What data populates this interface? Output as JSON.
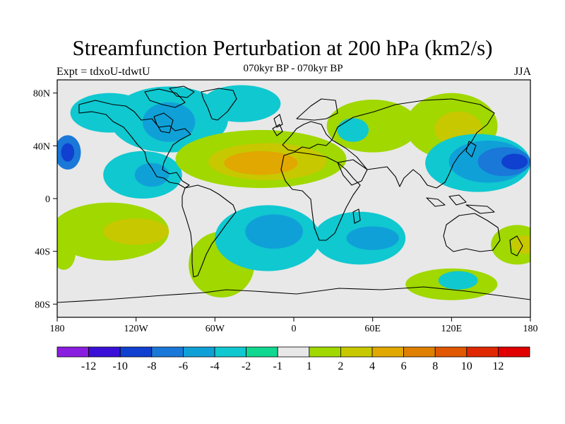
{
  "title": "Streamfunction Perturbation at 200 hPa (km2/s)",
  "subtitle": "070kyr BP - 070kyr BP",
  "experiment": "Expt = tdxoU-tdwtU",
  "season": "JJA",
  "map": {
    "lat_range": [
      -90,
      90
    ],
    "lon_range": [
      -180,
      180
    ],
    "lat_ticks": [
      {
        "value": 80,
        "label": "80N"
      },
      {
        "value": 40,
        "label": "40N"
      },
      {
        "value": 0,
        "label": "0"
      },
      {
        "value": -40,
        "label": "40S"
      },
      {
        "value": -80,
        "label": "80S"
      }
    ],
    "lon_ticks": [
      {
        "value": -180,
        "label": "180"
      },
      {
        "value": -120,
        "label": "120W"
      },
      {
        "value": -60,
        "label": "60W"
      },
      {
        "value": 0,
        "label": "0"
      },
      {
        "value": 60,
        "label": "60E"
      },
      {
        "value": 120,
        "label": "120E"
      },
      {
        "value": 180,
        "label": "180"
      }
    ],
    "background_color": "#e8e8e8"
  },
  "colorbar": {
    "colors": [
      "#8a1ee0",
      "#3a10d8",
      "#1040d0",
      "#1a78d8",
      "#10a0d8",
      "#10c8d0",
      "#10d890",
      "#e8e8e8",
      "#a0d800",
      "#c8c800",
      "#e0a800",
      "#e08000",
      "#e05800",
      "#e02800",
      "#e00000"
    ],
    "labels": [
      "-12",
      "-10",
      "-8",
      "-6",
      "-4",
      "-2",
      "-1",
      "1",
      "2",
      "4",
      "6",
      "8",
      "10",
      "12"
    ]
  },
  "field_blobs": [
    {
      "lon": -172,
      "lat": 35,
      "rx": 10,
      "ry": 13,
      "level": -6
    },
    {
      "lon": -172,
      "lat": 35,
      "rx": 5,
      "ry": 7,
      "level": -8
    },
    {
      "lon": -175,
      "lat": -41,
      "rx": 9,
      "ry": 13,
      "level": 2
    },
    {
      "lon": -140,
      "lat": 65,
      "rx": 30,
      "ry": 15,
      "level": -2
    },
    {
      "lon": -95,
      "lat": 60,
      "rx": 45,
      "ry": 25,
      "level": -2
    },
    {
      "lon": -95,
      "lat": 58,
      "rx": 20,
      "ry": 15,
      "level": -4
    },
    {
      "lon": -115,
      "lat": 18,
      "rx": 30,
      "ry": 18,
      "level": -2
    },
    {
      "lon": -108,
      "lat": 18,
      "rx": 13,
      "ry": 9,
      "level": -4
    },
    {
      "lon": -40,
      "lat": 72,
      "rx": 30,
      "ry": 14,
      "level": -2
    },
    {
      "lon": -25,
      "lat": 30,
      "rx": 65,
      "ry": 22,
      "level": 2
    },
    {
      "lon": -20,
      "lat": 28,
      "rx": 45,
      "ry": 14,
      "level": 4
    },
    {
      "lon": -25,
      "lat": 27,
      "rx": 28,
      "ry": 9,
      "level": 6
    },
    {
      "lon": 60,
      "lat": 55,
      "rx": 35,
      "ry": 20,
      "level": 2
    },
    {
      "lon": 120,
      "lat": 55,
      "rx": 35,
      "ry": 25,
      "level": 2
    },
    {
      "lon": 125,
      "lat": 53,
      "rx": 18,
      "ry": 13,
      "level": 4
    },
    {
      "lon": 45,
      "lat": 52,
      "rx": 12,
      "ry": 9,
      "level": -2
    },
    {
      "lon": 140,
      "lat": 27,
      "rx": 40,
      "ry": 22,
      "level": -2
    },
    {
      "lon": 148,
      "lat": 28,
      "rx": 30,
      "ry": 16,
      "level": -4
    },
    {
      "lon": 160,
      "lat": 28,
      "rx": 20,
      "ry": 11,
      "level": -6
    },
    {
      "lon": 168,
      "lat": 28,
      "rx": 10,
      "ry": 6,
      "level": -8
    },
    {
      "lon": -140,
      "lat": -25,
      "rx": 45,
      "ry": 22,
      "level": 2
    },
    {
      "lon": -120,
      "lat": -25,
      "rx": 25,
      "ry": 10,
      "level": 4
    },
    {
      "lon": -55,
      "lat": -50,
      "rx": 25,
      "ry": 25,
      "level": 2
    },
    {
      "lon": -20,
      "lat": -30,
      "rx": 40,
      "ry": 25,
      "level": -2
    },
    {
      "lon": -15,
      "lat": -25,
      "rx": 22,
      "ry": 13,
      "level": -4
    },
    {
      "lon": 50,
      "lat": -30,
      "rx": 35,
      "ry": 20,
      "level": -2
    },
    {
      "lon": 60,
      "lat": -30,
      "rx": 20,
      "ry": 9,
      "level": -4
    },
    {
      "lon": 120,
      "lat": -65,
      "rx": 35,
      "ry": 12,
      "level": 2
    },
    {
      "lon": 125,
      "lat": -62,
      "rx": 15,
      "ry": 7,
      "level": -2
    },
    {
      "lon": 170,
      "lat": -35,
      "rx": 20,
      "ry": 15,
      "level": 2
    },
    {
      "lon": 175,
      "lat": -35,
      "rx": 9,
      "ry": 7,
      "level": 4
    }
  ]
}
